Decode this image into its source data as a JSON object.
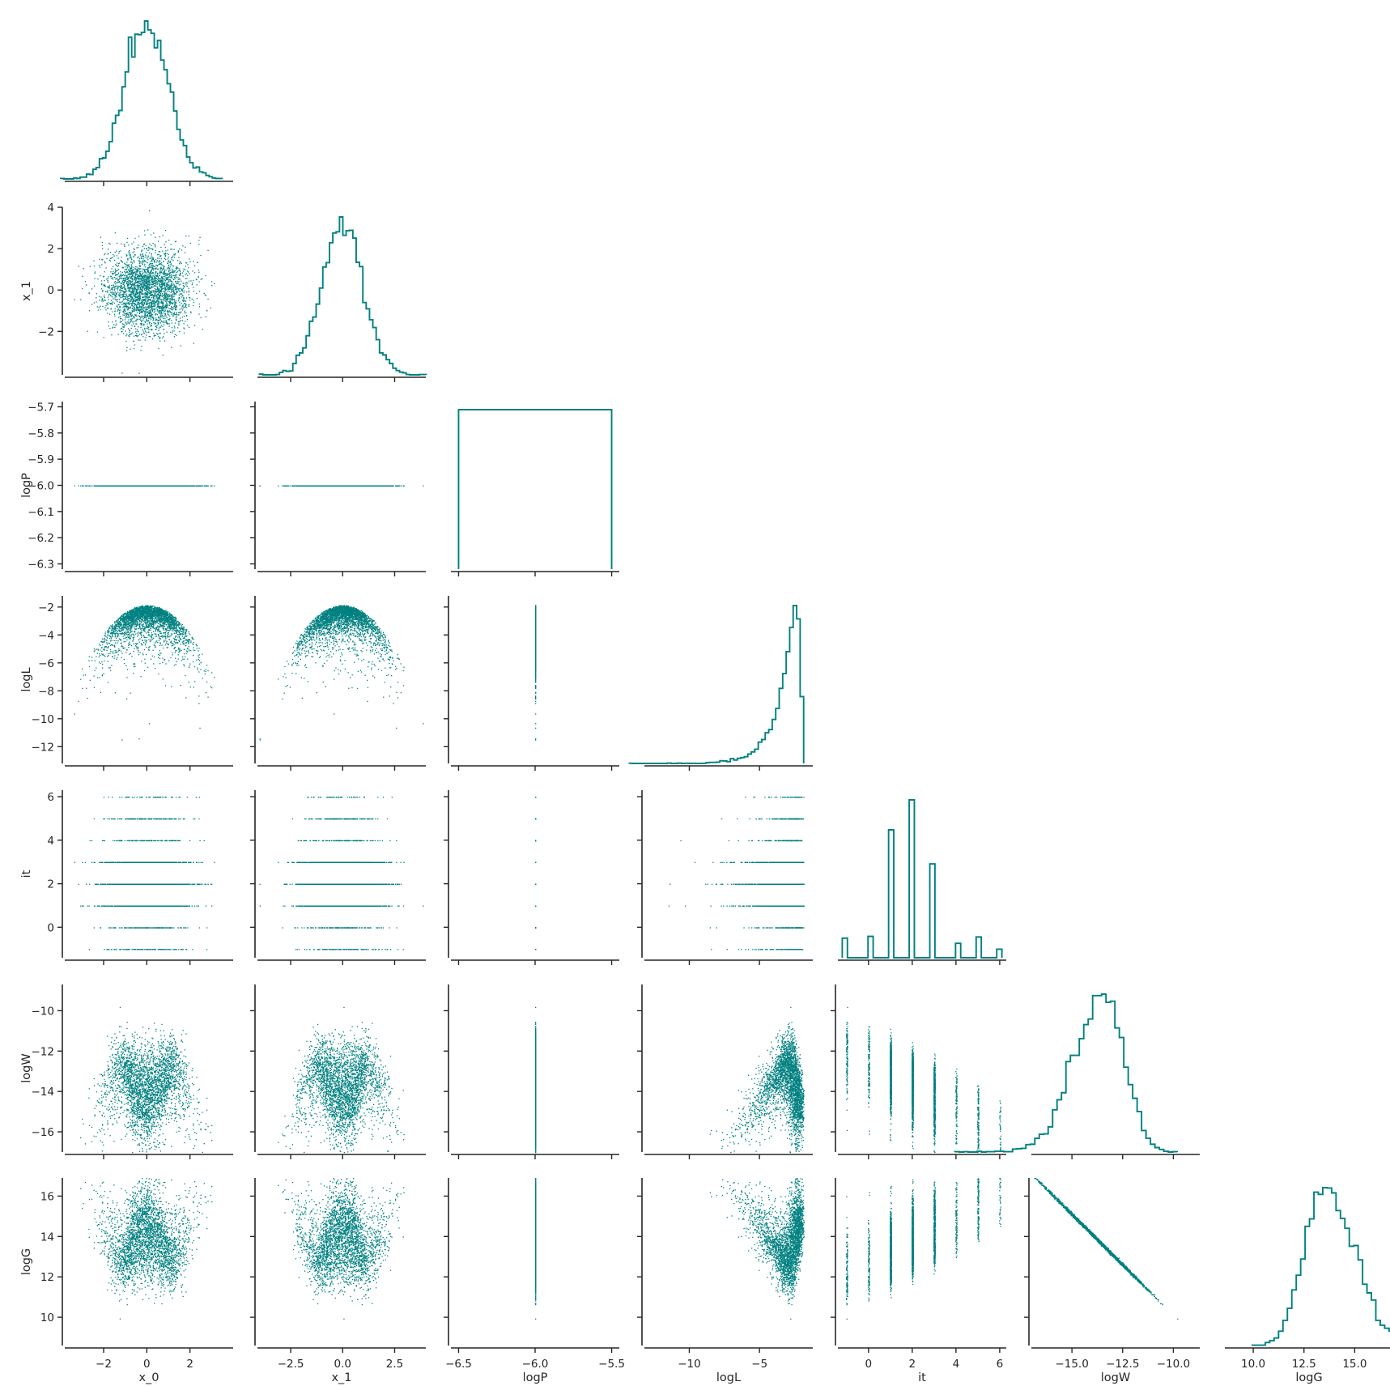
{
  "chart_data": {
    "type": "scatter",
    "title": "",
    "color": "#008080",
    "variables": [
      {
        "name": "x_0",
        "range": [
          -3.8,
          4.0
        ],
        "ticks": [
          {
            "v": -2,
            "label": "−2"
          },
          {
            "v": 0,
            "label": "0"
          },
          {
            "v": 2,
            "label": "2"
          }
        ]
      },
      {
        "name": "x_1",
        "range": [
          -4.1,
          4.0
        ],
        "ticks": [
          {
            "v": -2.5,
            "label": "−2.5"
          },
          {
            "v": 0,
            "label": "0.0"
          },
          {
            "v": 2.5,
            "label": "2.5"
          }
        ],
        "yticks": [
          {
            "v": -2,
            "label": "−2"
          },
          {
            "v": 0,
            "label": "0"
          },
          {
            "v": 2,
            "label": "2"
          },
          {
            "v": 4,
            "label": "4"
          }
        ]
      },
      {
        "name": "logP",
        "range": [
          -6.55,
          -5.45
        ],
        "ticks": [
          {
            "v": -6.5,
            "label": "−6.5"
          },
          {
            "v": -6.0,
            "label": "−6.0"
          },
          {
            "v": -5.5,
            "label": "−5.5"
          }
        ],
        "yrange": [
          -6.32,
          -5.68
        ],
        "yticks": [
          {
            "v": -6.3,
            "label": "−6.3"
          },
          {
            "v": -6.2,
            "label": "−6.2"
          },
          {
            "v": -6.1,
            "label": "−6.1"
          },
          {
            "v": -6.0,
            "label": "−6.0"
          },
          {
            "v": -5.9,
            "label": "−5.9"
          },
          {
            "v": -5.8,
            "label": "−5.8"
          },
          {
            "v": -5.7,
            "label": "−5.7"
          }
        ]
      },
      {
        "name": "logL",
        "range": [
          -13.2,
          -1.2
        ],
        "ticks": [
          {
            "v": -10,
            "label": "−10"
          },
          {
            "v": -5,
            "label": "−5"
          }
        ],
        "yticks": [
          {
            "v": -12,
            "label": "−12"
          },
          {
            "v": -10,
            "label": "−10"
          },
          {
            "v": -8,
            "label": "−8"
          },
          {
            "v": -6,
            "label": "−6"
          },
          {
            "v": -4,
            "label": "−4"
          },
          {
            "v": -2,
            "label": "−2"
          }
        ]
      },
      {
        "name": "it",
        "range": [
          -1.4,
          6.3
        ],
        "ticks": [
          {
            "v": 0,
            "label": "0"
          },
          {
            "v": 2,
            "label": "2"
          },
          {
            "v": 4,
            "label": "4"
          },
          {
            "v": 6,
            "label": "6"
          }
        ]
      },
      {
        "name": "logW",
        "range": [
          -17.0,
          -8.7
        ],
        "ticks": [
          {
            "v": -15,
            "label": "−15.0"
          },
          {
            "v": -12.5,
            "label": "−12.5"
          },
          {
            "v": -10,
            "label": "−10.0"
          }
        ],
        "yticks": [
          {
            "v": -16,
            "label": "−16"
          },
          {
            "v": -14,
            "label": "−14"
          },
          {
            "v": -12,
            "label": "−12"
          },
          {
            "v": -10,
            "label": "−10"
          }
        ]
      },
      {
        "name": "logG",
        "range": [
          8.6,
          16.9
        ],
        "ticks": [
          {
            "v": 10,
            "label": "10.0"
          },
          {
            "v": 12.5,
            "label": "12.5"
          },
          {
            "v": 15,
            "label": "15.0"
          }
        ],
        "yticks": [
          {
            "v": 10,
            "label": "10"
          },
          {
            "v": 12,
            "label": "12"
          },
          {
            "v": 14,
            "label": "14"
          },
          {
            "v": 16,
            "label": "16"
          }
        ]
      }
    ],
    "samples": 6000,
    "histograms": [
      {
        "variable": "x_0",
        "distribution": "normal",
        "mean": 0.0,
        "sd": 1.0
      },
      {
        "variable": "x_1",
        "distribution": "normal",
        "mean": 0.0,
        "sd": 1.0
      },
      {
        "variable": "logP",
        "distribution": "constant",
        "value": -6.0
      },
      {
        "variable": "logL",
        "distribution": "skewed-left",
        "max": -1.84
      },
      {
        "variable": "it",
        "distribution": "discrete",
        "values": [
          -1,
          0,
          1,
          2,
          3,
          4,
          5,
          6
        ],
        "relative_counts": [
          0.13,
          0.15,
          0.81,
          1.0,
          0.6,
          0.09,
          0.11,
          0.05
        ]
      },
      {
        "variable": "logW",
        "distribution": "multimodal"
      },
      {
        "variable": "logG",
        "distribution": "multimodal"
      }
    ],
    "grid": false,
    "legend": "none",
    "layout": "corner"
  }
}
